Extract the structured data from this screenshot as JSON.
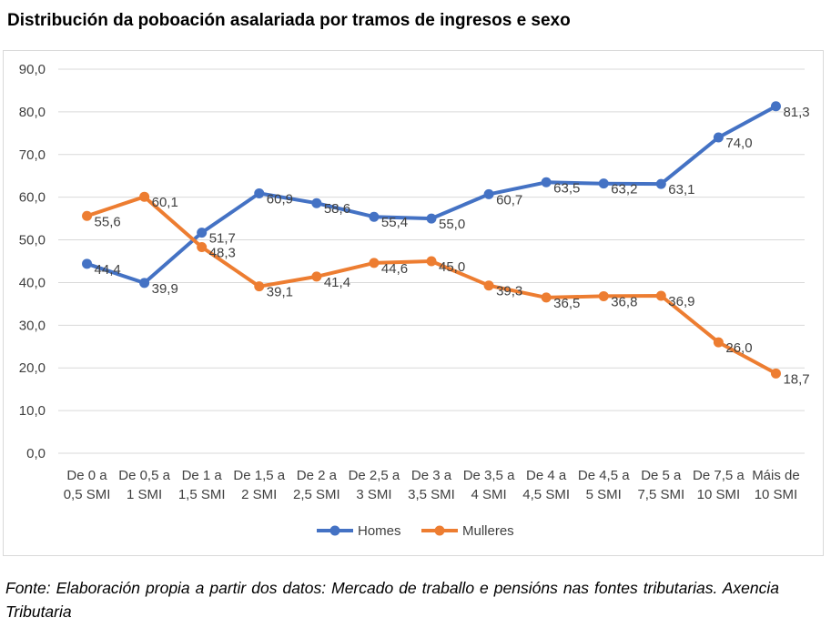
{
  "title": "Distribución da poboación asalariada por tramos de ingresos e sexo",
  "source": "Fonte: Elaboración propia a partir dos datos: Mercado de traballo e pensións nas fontes tributarias. Axencia Tributaria",
  "chart_data": {
    "type": "line",
    "title": "",
    "xlabel": "",
    "ylabel": "",
    "ylim": [
      0,
      90
    ],
    "yticks": [
      "0,0",
      "10,0",
      "20,0",
      "30,0",
      "40,0",
      "50,0",
      "60,0",
      "70,0",
      "80,0",
      "90,0"
    ],
    "grid": true,
    "legend_position": "bottom",
    "categories": [
      [
        "De 0 a",
        "0,5 SMI"
      ],
      [
        "De 0,5 a",
        "1 SMI"
      ],
      [
        "De 1 a",
        "1,5 SMI"
      ],
      [
        "De 1,5 a",
        "2 SMI"
      ],
      [
        "De 2 a",
        "2,5 SMI"
      ],
      [
        "De 2,5 a",
        "3 SMI"
      ],
      [
        "De 3 a",
        "3,5 SMI"
      ],
      [
        "De 3,5 a",
        "4 SMI"
      ],
      [
        "De 4 a",
        "4,5 SMI"
      ],
      [
        "De 4,5 a",
        "5 SMI"
      ],
      [
        "De 5 a",
        "7,5 SMI"
      ],
      [
        "De 7,5 a",
        "10 SMI"
      ],
      [
        "Máis de",
        "10 SMI"
      ]
    ],
    "series": [
      {
        "name": "Homes",
        "color": "#4472c4",
        "values": [
          44.4,
          39.9,
          51.7,
          60.9,
          58.6,
          55.4,
          55.0,
          60.7,
          63.5,
          63.2,
          63.1,
          74.0,
          81.3
        ],
        "labels": [
          "44,4",
          "39,9",
          "51,7",
          "60,9",
          "58,6",
          "55,4",
          "55,0",
          "60,7",
          "63,5",
          "63,2",
          "63,1",
          "74,0",
          "81,3"
        ]
      },
      {
        "name": "Mulleres",
        "color": "#ed7d31",
        "values": [
          55.6,
          60.1,
          48.3,
          39.1,
          41.4,
          44.6,
          45.0,
          39.3,
          36.5,
          36.8,
          36.9,
          26.0,
          18.7
        ],
        "labels": [
          "55,6",
          "60,1",
          "48,3",
          "39,1",
          "41,4",
          "44,6",
          "45,0",
          "39,3",
          "36,5",
          "36,8",
          "36,9",
          "26,0",
          "18,7"
        ]
      }
    ]
  }
}
